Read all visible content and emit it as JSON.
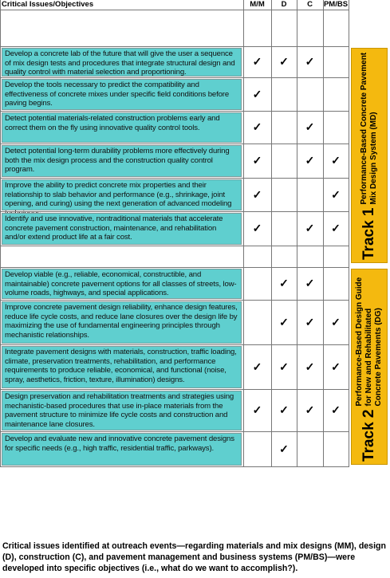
{
  "table": {
    "headers": {
      "issues": "Critical Issues/Objectives",
      "mm": "M/M",
      "d": "D",
      "c": "C",
      "pmbs": "PM/BS"
    },
    "groups": [
      {
        "track_label": "Track 1",
        "track_title": "Performance-Based Concrete Pavement Mix Design System (MD)",
        "rows": [
          {
            "text": "Develop a concrete lab of the future that will give the user a sequence of mix design tests and procedures that integrate structural design and quality control with material selection and proportioning.",
            "checks": {
              "mm": "✓",
              "d": "✓",
              "c": "✓"
            }
          },
          {
            "text": "Develop the tools necessary to predict the compatibility and effectiveness of concrete mixes under specific field conditions before paving begins.",
            "checks": {
              "mm": "✓"
            }
          },
          {
            "text": "Detect potential materials-related construction problems early and correct them on the fly using innovative quality control tools.",
            "checks": {
              "mm": "✓",
              "c": "✓"
            }
          },
          {
            "text": "Detect potential long-term durability problems more effectively during both the mix design process and the construction quality control program.",
            "checks": {
              "mm": "✓",
              "c": "✓",
              "pmbs": "✓"
            }
          },
          {
            "text": "Improve the ability to predict concrete mix properties and their relationship to slab behavior and performance (e.g., shrinkage, joint opening, and curing) using the next generation of advanced modeling techniques.",
            "checks": {
              "mm": "✓",
              "pmbs": "✓"
            }
          },
          {
            "text": "Identify and use innovative, nontraditional materials that accelerate concrete pavement construction, maintenance, and rehabilitation and/or extend product life at a fair cost.",
            "checks": {
              "mm": "✓",
              "c": "✓",
              "pmbs": "✓"
            }
          }
        ]
      },
      {
        "track_label": "Track 2",
        "track_title": "Performance-Based Design Guide for New and Rehabilitated Concrete Pavements (DG)",
        "rows": [
          {
            "text": "Develop viable (e.g., reliable, economical, constructible, and maintainable) concrete pavement options for all classes of streets, low-volume roads, highways, and special applications.",
            "checks": {
              "d": "✓",
              "c": "✓"
            }
          },
          {
            "text": "Improve concrete pavement design reliability, enhance design features, reduce life cycle costs, and reduce lane closures over the design life by maximizing the use of fundamental engineering principles through mechanistic relationships.",
            "checks": {
              "d": "✓",
              "c": "✓",
              "pmbs": "✓"
            }
          },
          {
            "text": "Integrate pavement designs with materials, construction, traffic loading, climate, preservation treatments, rehabilitation, and performance requirements to produce reliable, economical, and functional (noise, spray, aesthetics, friction, texture, illumination) designs.",
            "checks": {
              "mm": "✓",
              "d": "✓",
              "c": "✓",
              "pmbs": "✓"
            }
          },
          {
            "text": "Design preservation and rehabilitation treatments and strategies using mechanistic-based procedures that use in-place materials from the pavement structure to minimize life cycle costs and construction and maintenance lane closures.",
            "checks": {
              "mm": "✓",
              "d": "✓",
              "c": "✓",
              "pmbs": "✓"
            }
          },
          {
            "text": "Develop and evaluate new and innovative concrete pavement designs for specific needs (e.g., high traffic, residential traffic, parkways).",
            "checks": {
              "d": "✓"
            }
          }
        ]
      }
    ]
  },
  "caption": "Critical issues identified at outreach events—regarding materials and mix designs (MM), design (D), construction (C), and pavement management and business systems (PM/BS)—were developed into specific objectives (i.e., what do we want to accomplish?)."
}
